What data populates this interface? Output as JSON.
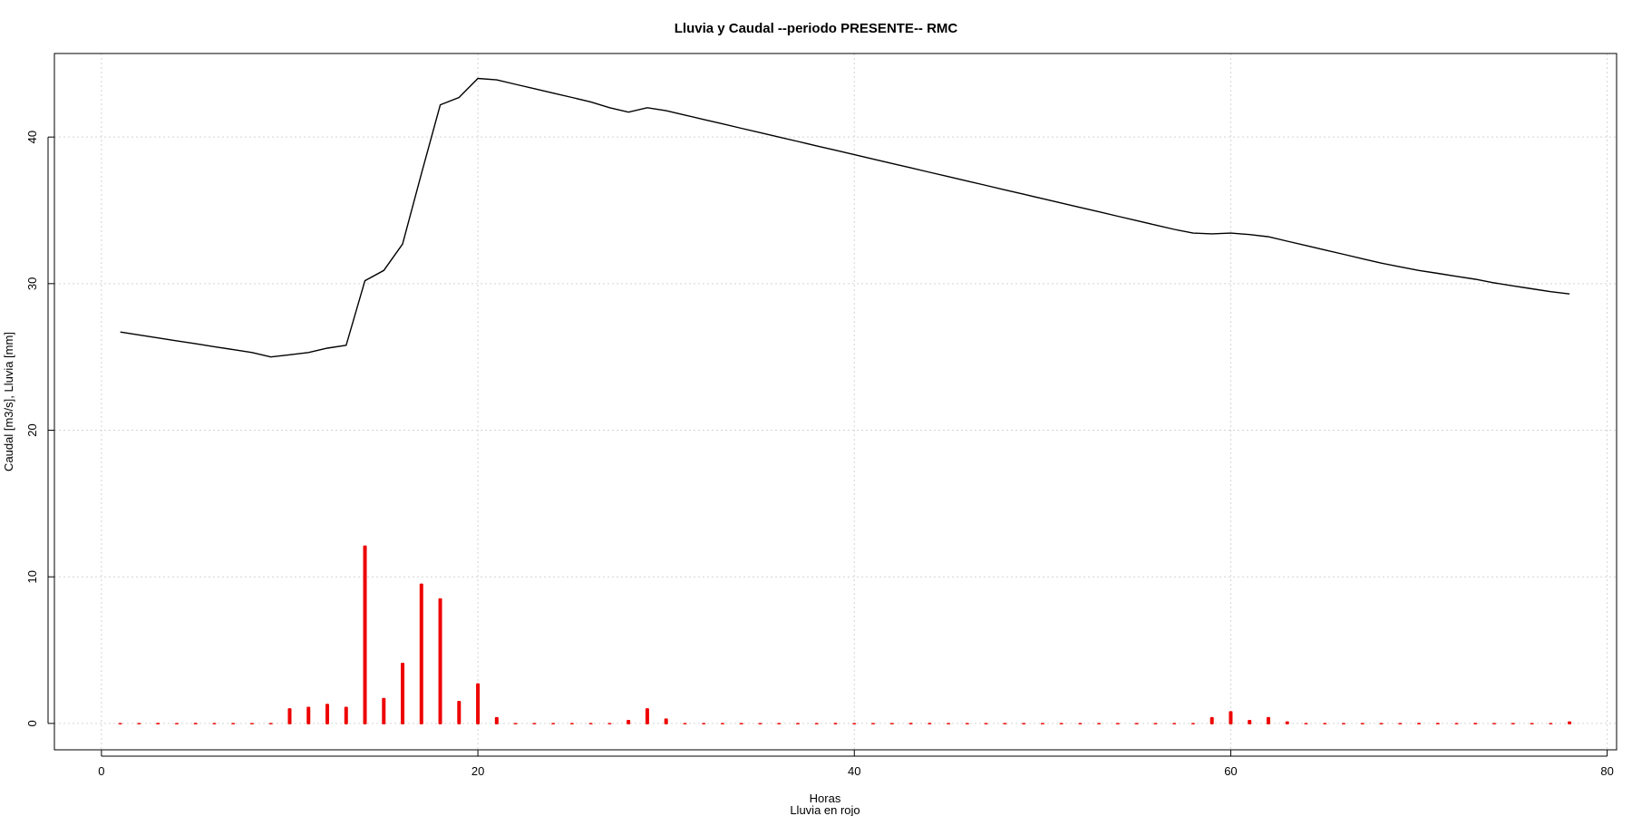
{
  "chart_data": {
    "type": "line",
    "title": "Lluvia y Caudal --periodo PRESENTE-- RMC",
    "xlabel": "Horas",
    "sublabel": "Lluvia en rojo",
    "ylabel": "Caudal [m3/s], Lluvia [mm]",
    "xlim": [
      -2.5,
      80.5
    ],
    "ylim": [
      -1.8,
      45.7
    ],
    "xticks": [
      0,
      20,
      40,
      60,
      80
    ],
    "yticks": [
      0,
      10,
      20,
      30,
      40
    ],
    "grid": true,
    "series": [
      {
        "kind": "line",
        "color": "#000000",
        "x": [
          1,
          2,
          3,
          4,
          5,
          6,
          7,
          8,
          9,
          10,
          11,
          12,
          13,
          14,
          15,
          16,
          17,
          18,
          19,
          20,
          21,
          22,
          23,
          24,
          25,
          26,
          27,
          28,
          29,
          30,
          31,
          32,
          33,
          34,
          35,
          36,
          37,
          38,
          39,
          40,
          41,
          42,
          43,
          44,
          45,
          46,
          47,
          48,
          49,
          50,
          51,
          52,
          53,
          54,
          55,
          56,
          57,
          58,
          59,
          60,
          61,
          62,
          63,
          64,
          65,
          66,
          67,
          68,
          69,
          70,
          71,
          72,
          73,
          74,
          75,
          76,
          77,
          78
        ],
        "values": [
          26.7,
          26.5,
          26.3,
          26.1,
          25.9,
          25.7,
          25.5,
          25.3,
          25.0,
          25.15,
          25.3,
          25.6,
          25.8,
          30.2,
          30.9,
          32.7,
          37.5,
          42.2,
          42.7,
          44.0,
          43.9,
          43.6,
          43.3,
          43.0,
          42.7,
          42.4,
          42.0,
          41.7,
          42.0,
          41.8,
          41.5,
          41.2,
          40.9,
          40.6,
          40.3,
          40.0,
          39.7,
          39.4,
          39.1,
          38.8,
          38.5,
          38.2,
          37.9,
          37.6,
          37.3,
          37.0,
          36.7,
          36.4,
          36.1,
          35.8,
          35.5,
          35.2,
          34.9,
          34.6,
          34.3,
          34.0,
          33.7,
          33.45,
          33.4,
          33.45,
          33.35,
          33.2,
          32.9,
          32.6,
          32.3,
          32.0,
          31.7,
          31.4,
          31.15,
          30.9,
          30.7,
          30.5,
          30.3,
          30.05,
          29.85,
          29.65,
          29.45,
          29.3
        ]
      },
      {
        "kind": "bars",
        "color": "#ee0000",
        "x": [
          1,
          2,
          3,
          4,
          5,
          6,
          7,
          8,
          9,
          10,
          11,
          12,
          13,
          14,
          15,
          16,
          17,
          18,
          19,
          20,
          21,
          22,
          23,
          24,
          25,
          26,
          27,
          28,
          29,
          30,
          31,
          32,
          33,
          34,
          35,
          36,
          37,
          38,
          39,
          40,
          41,
          42,
          43,
          44,
          45,
          46,
          47,
          48,
          49,
          50,
          51,
          52,
          53,
          54,
          55,
          56,
          57,
          58,
          59,
          60,
          61,
          62,
          63,
          64,
          65,
          66,
          67,
          68,
          69,
          70,
          71,
          72,
          73,
          74,
          75,
          76,
          77,
          78
        ],
        "values": [
          0,
          0,
          0.1,
          0,
          0.1,
          0,
          0,
          0,
          0,
          1.1,
          1.2,
          1.4,
          1.2,
          12.2,
          1.8,
          4.2,
          9.6,
          8.6,
          1.6,
          2.8,
          0.5,
          0,
          0,
          0,
          0,
          0,
          0,
          0.3,
          1.1,
          0.4,
          0,
          0,
          0,
          0,
          0,
          0,
          0,
          0,
          0.1,
          0,
          0,
          0,
          0.1,
          0.1,
          0,
          0,
          0,
          0,
          0,
          0,
          0,
          0,
          0,
          0,
          0,
          0,
          0,
          0,
          0.5,
          0.9,
          0.3,
          0.5,
          0.2,
          0,
          0,
          0,
          0,
          0,
          0,
          0.1,
          0.1,
          0,
          0.1,
          0,
          0,
          0,
          0,
          0.2
        ]
      }
    ]
  }
}
